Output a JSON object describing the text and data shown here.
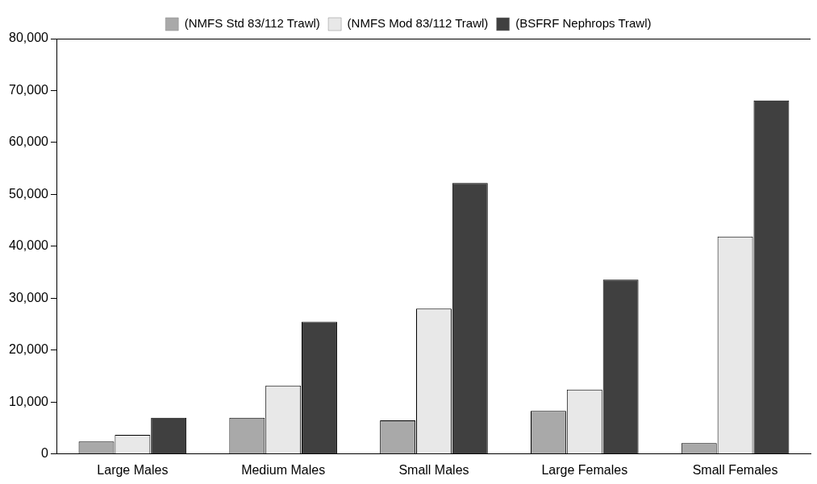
{
  "chart_data": {
    "type": "bar",
    "categories": [
      "Large Males",
      "Medium Males",
      "Small Males",
      "Large Females",
      "Small Females"
    ],
    "series": [
      {
        "name": "(NMFS Std 83/112 Trawl)",
        "color": "#a9a9a9",
        "values": [
          2400,
          7000,
          6500,
          8300,
          2100
        ]
      },
      {
        "name": "(NMFS Mod 83/112 Trawl)",
        "color": "#e8e8e8",
        "values": [
          3700,
          13200,
          28000,
          12400,
          41900
        ]
      },
      {
        "name": "(BSFRF Nephrops Trawl)",
        "color": "#404040",
        "values": [
          7000,
          25500,
          52200,
          33600,
          68100
        ]
      }
    ],
    "ylim": [
      0,
      80000
    ],
    "yticks": [
      {
        "value": 0,
        "label": "0"
      },
      {
        "value": 10000,
        "label": "10,000"
      },
      {
        "value": 20000,
        "label": "20,000"
      },
      {
        "value": 30000,
        "label": "30,000"
      },
      {
        "value": 40000,
        "label": "40,000"
      },
      {
        "value": 50000,
        "label": "50,000"
      },
      {
        "value": 60000,
        "label": "60,000"
      },
      {
        "value": 70000,
        "label": "70,000"
      },
      {
        "value": 80000,
        "label": "80,000"
      }
    ],
    "grid": false,
    "legend": "top"
  }
}
